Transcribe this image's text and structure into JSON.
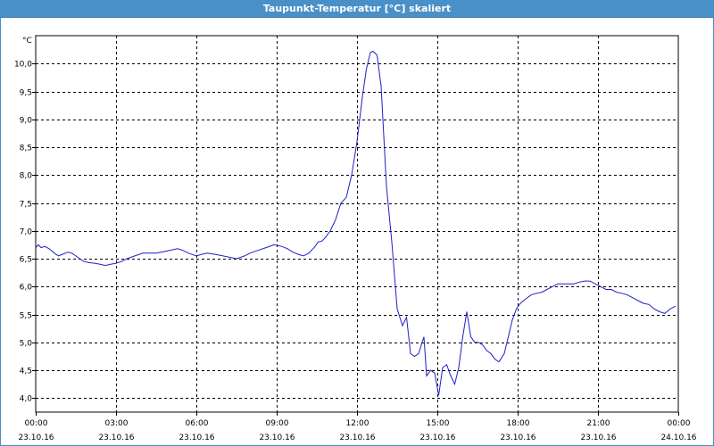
{
  "window": {
    "title": "Taupunkt-Temperatur [°C] skaliert"
  },
  "colors": {
    "titlebar": "#4a90c8",
    "line": "#1f1fc8",
    "grid": "#000000"
  },
  "chart_data": {
    "type": "line",
    "title": "Taupunkt-Temperatur [°C] skaliert",
    "ylabel": "°C",
    "xlabel": "",
    "ylim": [
      3.75,
      10.5
    ],
    "yticks": [
      4.0,
      4.5,
      5.0,
      5.5,
      6.0,
      6.5,
      7.0,
      7.5,
      8.0,
      8.5,
      9.0,
      9.5,
      10.0
    ],
    "ytick_labels": [
      "4,0",
      "4,5",
      "5,0",
      "5,5",
      "6,0",
      "6,5",
      "7,0",
      "7,5",
      "8,0",
      "8,5",
      "9,0",
      "9,5",
      "10,0"
    ],
    "xlim": [
      0,
      24
    ],
    "xticks": [
      {
        "h": 0,
        "time": "00:00",
        "date": "23.10.16"
      },
      {
        "h": 3,
        "time": "03:00",
        "date": "23.10.16"
      },
      {
        "h": 6,
        "time": "06:00",
        "date": "23.10.16"
      },
      {
        "h": 9,
        "time": "09:00",
        "date": "23.10.16"
      },
      {
        "h": 12,
        "time": "12:00",
        "date": "23.10.16"
      },
      {
        "h": 15,
        "time": "15:00",
        "date": "23.10.16"
      },
      {
        "h": 18,
        "time": "18:00",
        "date": "23.10.16"
      },
      {
        "h": 21,
        "time": "21:00",
        "date": "23.10.16"
      },
      {
        "h": 24,
        "time": "00:00",
        "date": "24.10.16"
      }
    ],
    "grid": true,
    "series": [
      {
        "x": [
          0.0,
          0.1,
          0.2,
          0.35,
          0.5,
          0.7,
          0.85,
          1.0,
          1.2,
          1.35,
          1.5,
          1.65,
          1.8,
          2.0,
          2.2,
          2.4,
          2.6,
          2.8,
          3.0,
          3.2,
          3.4,
          3.7,
          4.0,
          4.3,
          4.5,
          4.7,
          5.0,
          5.3,
          5.5,
          5.7,
          6.0,
          6.2,
          6.4,
          6.7,
          7.0,
          7.3,
          7.5,
          7.8,
          8.0,
          8.3,
          8.6,
          8.9,
          9.2,
          9.4,
          9.6,
          9.8,
          10.0,
          10.2,
          10.4,
          10.55,
          10.7,
          10.85,
          11.0,
          11.2,
          11.4,
          11.6,
          11.8,
          12.0,
          12.2,
          12.35,
          12.5,
          12.6,
          12.75,
          12.9,
          13.1,
          13.3,
          13.5,
          13.7,
          13.85,
          14.0,
          14.15,
          14.3,
          14.5,
          14.6,
          14.75,
          14.9,
          15.05,
          15.2,
          15.35,
          15.5,
          15.65,
          15.8,
          15.95,
          16.1,
          16.25,
          16.4,
          16.55,
          16.7,
          16.85,
          17.0,
          17.15,
          17.3,
          17.5,
          17.65,
          17.8,
          17.95,
          18.1,
          18.3,
          18.5,
          18.7,
          18.9,
          19.1,
          19.3,
          19.5,
          19.7,
          19.9,
          20.1,
          20.3,
          20.5,
          20.7,
          20.9,
          21.1,
          21.3,
          21.5,
          21.7,
          21.9,
          22.1,
          22.3,
          22.5,
          22.7,
          22.9,
          23.1,
          23.3,
          23.5,
          23.7,
          23.9
        ],
        "y": [
          6.7,
          6.75,
          6.7,
          6.72,
          6.68,
          6.6,
          6.55,
          6.58,
          6.62,
          6.6,
          6.55,
          6.5,
          6.45,
          6.43,
          6.42,
          6.4,
          6.38,
          6.4,
          6.42,
          6.45,
          6.5,
          6.55,
          6.6,
          6.6,
          6.6,
          6.62,
          6.65,
          6.68,
          6.65,
          6.6,
          6.55,
          6.58,
          6.6,
          6.58,
          6.55,
          6.52,
          6.5,
          6.55,
          6.6,
          6.65,
          6.7,
          6.75,
          6.72,
          6.68,
          6.62,
          6.58,
          6.55,
          6.6,
          6.7,
          6.8,
          6.82,
          6.9,
          7.0,
          7.2,
          7.5,
          7.6,
          8.0,
          8.6,
          9.4,
          9.9,
          10.2,
          10.22,
          10.15,
          9.6,
          7.8,
          6.8,
          5.6,
          5.3,
          5.45,
          4.8,
          4.75,
          4.8,
          5.1,
          4.4,
          4.5,
          4.45,
          4.05,
          4.55,
          4.6,
          4.4,
          4.25,
          4.55,
          5.1,
          5.55,
          5.1,
          5.0,
          5.0,
          4.95,
          4.85,
          4.8,
          4.7,
          4.65,
          4.8,
          5.1,
          5.4,
          5.6,
          5.7,
          5.78,
          5.85,
          5.88,
          5.9,
          5.95,
          6.0,
          6.05,
          6.05,
          6.05,
          6.05,
          6.08,
          6.1,
          6.1,
          6.05,
          6.0,
          5.95,
          5.95,
          5.9,
          5.88,
          5.85,
          5.8,
          5.75,
          5.7,
          5.68,
          5.6,
          5.55,
          5.52,
          5.6,
          5.65
        ]
      }
    ]
  }
}
